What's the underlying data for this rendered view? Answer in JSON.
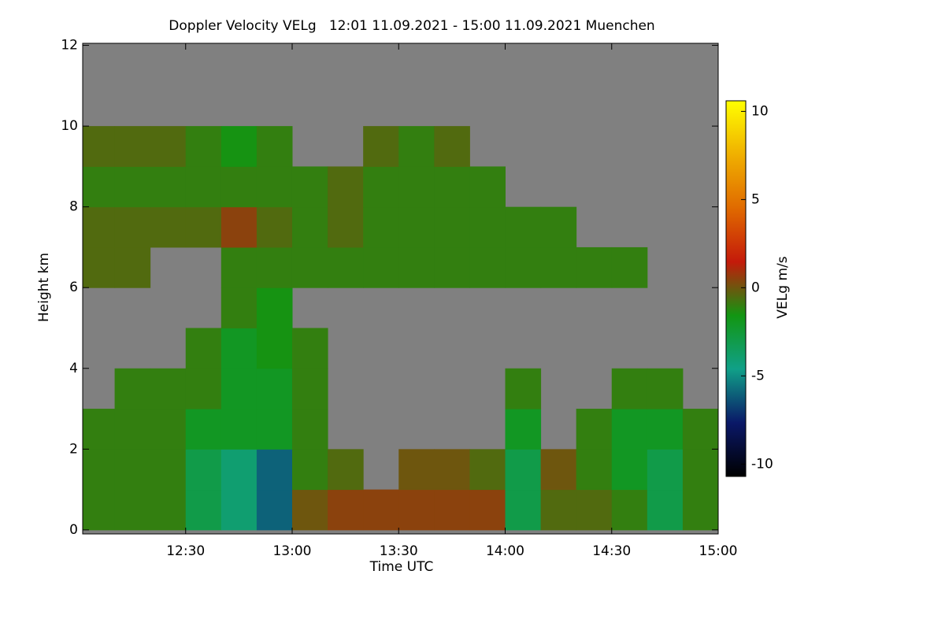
{
  "chart_data": {
    "type": "heatmap",
    "title": "Doppler Velocity VELg   12:01 11.09.2021 - 15:00 11.09.2021 Muenchen",
    "xlabel": "Time UTC",
    "ylabel": "Height km",
    "colorbar_label": "VELg m/s",
    "background": "#808080",
    "x_edges": [
      720,
      730,
      740,
      750,
      760,
      770,
      780,
      790,
      800,
      810,
      820,
      830,
      840,
      850,
      860,
      870,
      880,
      890,
      900
    ],
    "y_edges": [
      0,
      1,
      2,
      3,
      4,
      5,
      6,
      7,
      8,
      9,
      10,
      11,
      12
    ],
    "z": [
      [
        -1,
        -1,
        -1,
        -3,
        -4,
        -6,
        0,
        0.5,
        0.5,
        0.5,
        0.5,
        0.5,
        -3,
        -0.5,
        -0.5,
        -1,
        -3,
        -1
      ],
      [
        -1,
        -1,
        -1,
        -3,
        -4,
        -6,
        -1,
        -0.5,
        null,
        0,
        0,
        -0.5,
        -3,
        0,
        -1,
        -2,
        -3,
        -1
      ],
      [
        -1,
        -1,
        -1,
        -2,
        -2,
        -2,
        -1,
        null,
        null,
        null,
        null,
        null,
        -2,
        null,
        -1,
        -2,
        -2,
        -1
      ],
      [
        null,
        -1,
        -1,
        -1,
        -2,
        -2,
        -1,
        null,
        null,
        null,
        null,
        null,
        -1,
        null,
        null,
        -1,
        -1,
        null
      ],
      [
        null,
        null,
        null,
        -1,
        -2,
        -1.5,
        -1,
        null,
        null,
        null,
        null,
        null,
        null,
        null,
        null,
        null,
        null,
        null
      ],
      [
        null,
        null,
        null,
        null,
        -1,
        -1.5,
        null,
        null,
        null,
        null,
        null,
        null,
        null,
        null,
        null,
        null,
        null,
        null
      ],
      [
        -0.5,
        -0.5,
        null,
        null,
        -1,
        -1,
        -1,
        -1,
        -1,
        -1,
        -1,
        -1,
        -1,
        -1,
        -1,
        -1,
        null,
        null
      ],
      [
        -0.5,
        -0.5,
        -0.5,
        -0.5,
        0.5,
        -0.5,
        -1,
        -0.5,
        -1,
        -1,
        -1,
        -1,
        -1,
        -1,
        null,
        null,
        null,
        null
      ],
      [
        -1,
        -1,
        -1,
        -1,
        -1,
        -1,
        -1,
        -0.5,
        -1,
        -1,
        -1,
        -1,
        null,
        null,
        null,
        null,
        null,
        null
      ],
      [
        -0.5,
        -0.5,
        -0.5,
        -1,
        -1.5,
        -1,
        null,
        null,
        -0.5,
        -1,
        -0.5,
        null,
        null,
        null,
        null,
        null,
        null,
        null
      ],
      [
        null,
        null,
        null,
        null,
        null,
        null,
        null,
        null,
        null,
        null,
        null,
        null,
        null,
        null,
        null,
        null,
        null,
        null
      ],
      [
        null,
        null,
        null,
        null,
        null,
        null,
        null,
        null,
        null,
        null,
        null,
        null,
        null,
        null,
        null,
        null,
        null,
        null
      ]
    ],
    "xlim": [
      721,
      900
    ],
    "xticks": [
      {
        "value": 750,
        "label": "12:30"
      },
      {
        "value": 780,
        "label": "13:00"
      },
      {
        "value": 810,
        "label": "13:30"
      },
      {
        "value": 840,
        "label": "14:00"
      },
      {
        "value": 870,
        "label": "14:30"
      },
      {
        "value": 900,
        "label": "15:00"
      }
    ],
    "ylim": [
      -0.1,
      12.05
    ],
    "yticks": [
      0,
      2,
      4,
      6,
      8,
      10,
      12
    ],
    "zlim": [
      -10.7,
      10.6
    ],
    "zticks": [
      -10,
      -5,
      0,
      5,
      10
    ],
    "colormap": [
      "#000000",
      "#0a1868",
      "#10a088",
      "#129612",
      "#c41a0a",
      "#e06a00",
      "#f0b000",
      "#ffff00"
    ]
  }
}
